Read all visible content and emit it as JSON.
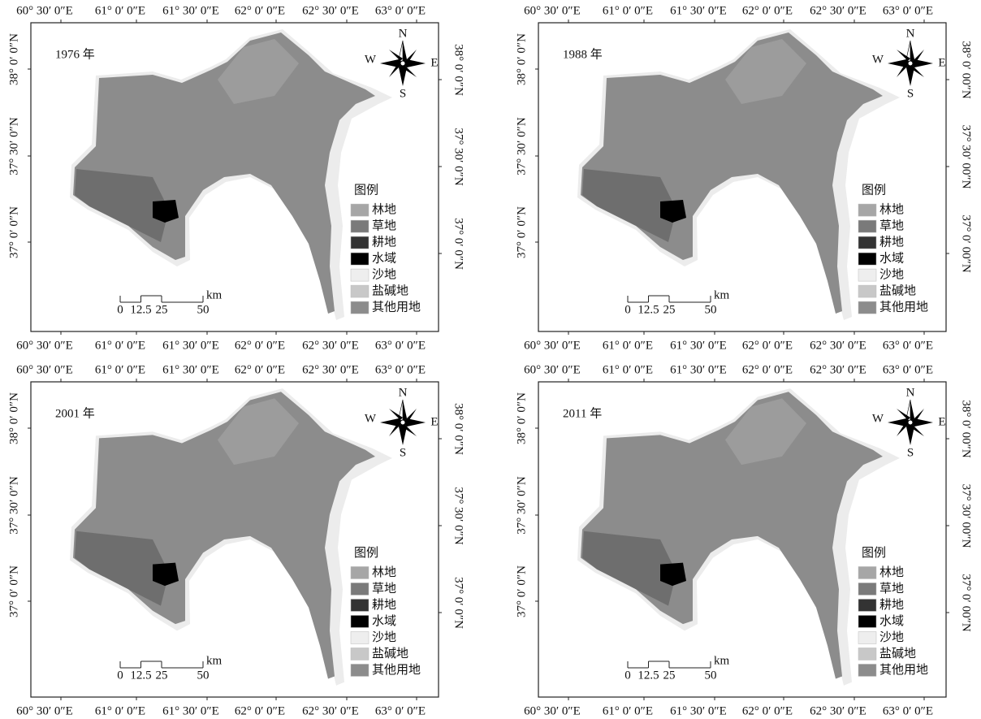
{
  "panels": [
    {
      "year": "1976 年",
      "right_lat_labels": [
        "38° 0′ 0″N",
        "37° 30′ 0″N",
        "37° 0′ 0″N"
      ]
    },
    {
      "year": "1988 年",
      "right_lat_labels": [
        "38° 0′ 00″N",
        "37° 30′ 00″N",
        "37° 0′ 00″N"
      ]
    },
    {
      "year": "2001 年",
      "right_lat_labels": [
        "38° 0′ 0″N",
        "37° 30′ 0″N",
        "37° 0′ 0″N"
      ]
    },
    {
      "year": "2011 年",
      "right_lat_labels": [
        "38° 0′ 00″N",
        "37° 30′ 00″N",
        "37° 0′ 00″N"
      ]
    }
  ],
  "lon_labels": [
    "60° 30′ 0″E",
    "61° 0′ 0″E",
    "61° 30′ 0″E",
    "62° 0′ 0″E",
    "62° 30′ 0″E",
    "63° 0′ 0″E"
  ],
  "lat_labels": [
    "38° 0′ 0″N",
    "37° 30′ 0″N",
    "37° 0′ 0″N"
  ],
  "compass": {
    "n": "N",
    "s": "S",
    "w": "W",
    "e": "E"
  },
  "legend": {
    "title": "图例",
    "items": [
      {
        "label": "林地",
        "color": "#a6a6a6"
      },
      {
        "label": "草地",
        "color": "#7a7a7a"
      },
      {
        "label": "耕地",
        "color": "#333333"
      },
      {
        "label": "水域",
        "color": "#000000"
      },
      {
        "label": "沙地",
        "color": "#eeeeee"
      },
      {
        "label": "盐碱地",
        "color": "#c8c8c8"
      },
      {
        "label": "其他用地",
        "color": "#8c8c8c"
      }
    ]
  },
  "scale_bar": {
    "ticks": [
      0,
      12.5,
      25,
      50
    ],
    "unit": "km"
  }
}
